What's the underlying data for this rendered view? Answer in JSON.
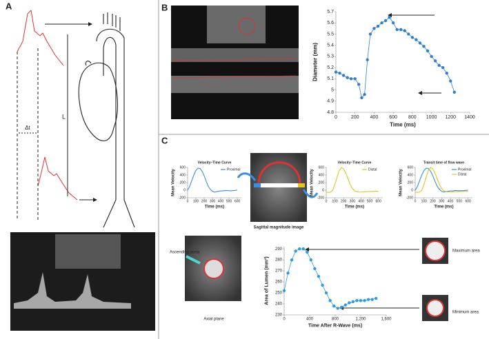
{
  "figure": {
    "panel_a": {
      "label": "A",
      "delta_t": "Δt",
      "length": "L"
    },
    "panel_b": {
      "label": "B"
    },
    "panel_c": {
      "label": "C",
      "sagittal_caption": "Sagittal magnitude image",
      "ascending_aorta": "Ascending aorta",
      "axial_caption": "Axial plane",
      "max_area": "Maximum area",
      "min_area": "Minimum area"
    }
  },
  "chart_data": [
    {
      "type": "line",
      "ylabel": "Diameter (mm)",
      "xlabel": "Time (ms)",
      "markers": true,
      "color": "#2f7fd1",
      "x": [
        0,
        40,
        80,
        120,
        160,
        200,
        240,
        270,
        300,
        330,
        360,
        400,
        440,
        480,
        520,
        560,
        600,
        640,
        680,
        720,
        760,
        800,
        840,
        880,
        920,
        960,
        1000,
        1040,
        1080,
        1120,
        1160,
        1200,
        1240
      ],
      "values": [
        5.16,
        5.15,
        5.13,
        5.11,
        5.1,
        5.1,
        5.05,
        4.93,
        4.96,
        5.27,
        5.5,
        5.55,
        5.57,
        5.6,
        5.62,
        5.65,
        5.6,
        5.54,
        5.54,
        5.53,
        5.5,
        5.47,
        5.45,
        5.42,
        5.39,
        5.35,
        5.3,
        5.26,
        5.22,
        5.2,
        5.15,
        5.08,
        4.98
      ],
      "xlim": [
        0,
        1400
      ],
      "xticks": [
        0,
        200,
        400,
        600,
        800,
        1000,
        1200,
        1400
      ],
      "ylim": [
        4.8,
        5.7
      ],
      "yticks": [
        4.8,
        4.9,
        5,
        5.1,
        5.2,
        5.3,
        5.4,
        5.5,
        5.6,
        5.7
      ]
    },
    {
      "type": "line",
      "title": "Velocity–Time Curve",
      "ylabel": "Mean Velocity",
      "xlabel": "Time (ms)",
      "markers": false,
      "legend": "upper right",
      "x": [
        0,
        25,
        50,
        75,
        100,
        125,
        150,
        175,
        200,
        225,
        250,
        275,
        300,
        325,
        350,
        375,
        400,
        425,
        450,
        475,
        500,
        525,
        550,
        575,
        600
      ],
      "series": [
        {
          "name": "Proximal",
          "color": "#3a8ee0",
          "values": [
            0,
            100,
            250,
            400,
            520,
            580,
            570,
            500,
            380,
            230,
            100,
            20,
            -30,
            -50,
            -40,
            -30,
            -20,
            -20,
            -10,
            -10,
            -15,
            -15,
            -10,
            -5,
            0
          ]
        }
      ],
      "xlim": [
        0,
        650
      ],
      "xticks": [
        0,
        100,
        200,
        300,
        400,
        500,
        600
      ],
      "ylim": [
        -200,
        600
      ],
      "yticks": [
        -200,
        0,
        200,
        400,
        600
      ]
    },
    {
      "type": "line",
      "title": "Velocity–Time Curve",
      "ylabel": "Mean Velocity",
      "xlabel": "Time (ms)",
      "markers": false,
      "legend": "upper right",
      "x": [
        0,
        25,
        50,
        75,
        100,
        125,
        150,
        175,
        200,
        225,
        250,
        275,
        300,
        325,
        350,
        375,
        400,
        425,
        450,
        475,
        500,
        525,
        550,
        575,
        600
      ],
      "series": [
        {
          "name": "Distal",
          "color": "#e6c419",
          "values": [
            -50,
            -60,
            -50,
            0,
            150,
            350,
            520,
            600,
            560,
            450,
            300,
            150,
            50,
            -20,
            -40,
            -50,
            -50,
            -45,
            -40,
            -40,
            -35,
            -35,
            -30,
            -30,
            -30
          ]
        }
      ],
      "xlim": [
        0,
        650
      ],
      "xticks": [
        0,
        100,
        200,
        300,
        400,
        500,
        600
      ],
      "ylim": [
        -200,
        600
      ],
      "yticks": [
        -200,
        0,
        200,
        400,
        600
      ]
    },
    {
      "type": "line",
      "title": "Transit time of flow wave",
      "ylabel": "Mean Velocity",
      "xlabel": "Time (ms)",
      "markers": false,
      "legend": "upper right",
      "x": [
        0,
        25,
        50,
        75,
        100,
        125,
        150,
        175,
        200,
        225,
        250,
        275,
        300,
        325,
        350,
        375,
        400,
        425,
        450,
        475,
        500,
        525,
        550,
        575,
        600
      ],
      "series": [
        {
          "name": "Proximal",
          "color": "#3a8ee0",
          "values": [
            0,
            100,
            250,
            400,
            520,
            580,
            570,
            500,
            380,
            230,
            100,
            20,
            -30,
            -50,
            -40,
            -30,
            -20,
            -20,
            -10,
            -10,
            -15,
            -15,
            -10,
            -5,
            0
          ]
        },
        {
          "name": "Distal",
          "color": "#e6c419",
          "values": [
            -50,
            -60,
            -50,
            0,
            150,
            350,
            520,
            600,
            560,
            450,
            300,
            150,
            50,
            -20,
            -40,
            -50,
            -50,
            -45,
            -40,
            -40,
            -35,
            -35,
            -30,
            -30,
            -30
          ]
        }
      ],
      "xlim": [
        0,
        650
      ],
      "xticks": [
        0,
        100,
        200,
        300,
        400,
        500,
        600
      ],
      "ylim": [
        -200,
        600
      ],
      "yticks": [
        -200,
        0,
        200,
        400,
        600
      ]
    },
    {
      "type": "line",
      "ylabel": "Area of Lumen (mm²)",
      "xlabel": "Time After R-Wave (ms)",
      "markers": true,
      "color": "#2f9be0",
      "x": [
        0,
        60,
        120,
        180,
        240,
        300,
        360,
        420,
        480,
        540,
        600,
        660,
        720,
        780,
        840,
        900,
        960,
        1020,
        1080,
        1140,
        1200,
        1260,
        1320,
        1380,
        1440
      ],
      "values": [
        252,
        268,
        280,
        288,
        290,
        290,
        287,
        280,
        272,
        265,
        257,
        250,
        243,
        238,
        236,
        237,
        239,
        241,
        242,
        243,
        243,
        243,
        244,
        244,
        245
      ],
      "xlim": [
        0,
        1600
      ],
      "xticks": [
        0,
        400,
        800,
        {
          "value": 1200,
          "label": "1,200"
        },
        {
          "value": 1600,
          "label": "1,600"
        }
      ],
      "ylim": [
        230,
        292
      ],
      "yticks": [
        230,
        240,
        250,
        260,
        270,
        280,
        290
      ]
    }
  ]
}
